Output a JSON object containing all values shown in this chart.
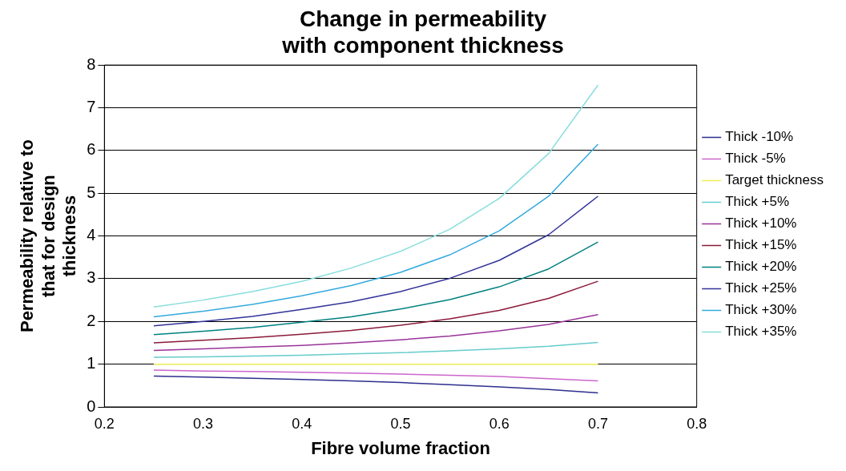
{
  "chart_data": {
    "type": "line",
    "title": "Change in permeability with component thickness",
    "xlabel": "Fibre volume fraction",
    "ylabel": "Permeability relative to that for design thickness",
    "x": [
      0.25,
      0.3,
      0.35,
      0.4,
      0.45,
      0.5,
      0.55,
      0.6,
      0.65,
      0.7
    ],
    "xlim": [
      0.2,
      0.8
    ],
    "xticks": [
      0.2,
      0.3,
      0.4,
      0.5,
      0.6,
      0.7,
      0.8
    ],
    "ylim": [
      0,
      8
    ],
    "yticks": [
      0,
      1,
      2,
      3,
      4,
      5,
      6,
      7,
      8
    ],
    "grid": "y",
    "legend": "right",
    "marker": "none",
    "line_style": "solid",
    "series": [
      {
        "name": "Thick -10%",
        "color": "#2e2e8f",
        "values": [
          0.72,
          0.7,
          0.67,
          0.64,
          0.61,
          0.57,
          0.52,
          0.47,
          0.41,
          0.33
        ]
      },
      {
        "name": "Thick -5%",
        "color": "#cc66cc",
        "values": [
          0.86,
          0.84,
          0.83,
          0.81,
          0.79,
          0.77,
          0.74,
          0.71,
          0.66,
          0.61
        ]
      },
      {
        "name": "Target thickness",
        "color": "#eeee55",
        "values": [
          1,
          1,
          1,
          1,
          1,
          1,
          1,
          1,
          1,
          1
        ]
      },
      {
        "name": "Thick +5%",
        "color": "#66cccc",
        "values": [
          1.16,
          1.17,
          1.19,
          1.21,
          1.24,
          1.27,
          1.31,
          1.36,
          1.42,
          1.51
        ]
      },
      {
        "name": "Thick +10%",
        "color": "#993399",
        "values": [
          1.32,
          1.36,
          1.4,
          1.44,
          1.5,
          1.57,
          1.66,
          1.78,
          1.93,
          2.16
        ]
      },
      {
        "name": "Thick +15%",
        "color": "#8b1a3a",
        "values": [
          1.5,
          1.56,
          1.62,
          1.7,
          1.79,
          1.91,
          2.06,
          2.26,
          2.54,
          2.94
        ]
      },
      {
        "name": "Thick +20%",
        "color": "#008080",
        "values": [
          1.69,
          1.77,
          1.86,
          1.98,
          2.11,
          2.29,
          2.51,
          2.81,
          3.23,
          3.86
        ]
      },
      {
        "name": "Thick +25%",
        "color": "#333399",
        "values": [
          1.9,
          2.0,
          2.12,
          2.28,
          2.46,
          2.7,
          3.01,
          3.43,
          4.03,
          4.93
        ]
      },
      {
        "name": "Thick +30%",
        "color": "#33aadd",
        "values": [
          2.11,
          2.24,
          2.4,
          2.6,
          2.84,
          3.15,
          3.56,
          4.12,
          4.93,
          6.15
        ]
      },
      {
        "name": "Thick +35%",
        "color": "#88dddd",
        "values": [
          2.34,
          2.5,
          2.7,
          2.94,
          3.25,
          3.64,
          4.16,
          4.88,
          5.93,
          7.53
        ]
      }
    ]
  }
}
